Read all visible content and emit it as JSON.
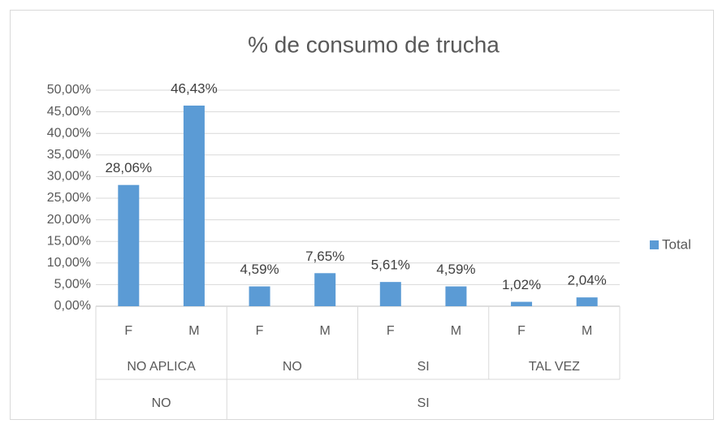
{
  "chart_data": {
    "type": "bar",
    "title": "% de consumo de trucha",
    "categories": [
      [
        "NO",
        "NO APLICA",
        "F"
      ],
      [
        "NO",
        "NO APLICA",
        "M"
      ],
      [
        "SI",
        "NO",
        "F"
      ],
      [
        "SI",
        "NO",
        "M"
      ],
      [
        "SI",
        "SI",
        "F"
      ],
      [
        "SI",
        "SI",
        "M"
      ],
      [
        "SI",
        "TAL VEZ",
        "F"
      ],
      [
        "SI",
        "TAL VEZ",
        "M"
      ]
    ],
    "series": [
      {
        "name": "Total",
        "color": "#5b9bd5",
        "values": [
          28.06,
          46.43,
          4.59,
          7.65,
          5.61,
          4.59,
          1.02,
          2.04
        ],
        "value_labels": [
          "28,06%",
          "46,43%",
          "4,59%",
          "7,65%",
          "5,61%",
          "4,59%",
          "1,02%",
          "2,04%"
        ]
      }
    ],
    "ylim": [
      0,
      50
    ],
    "yticks": [
      {
        "value": 0,
        "label": "0,00%"
      },
      {
        "value": 5,
        "label": "5,00%"
      },
      {
        "value": 10,
        "label": "10,00%"
      },
      {
        "value": 15,
        "label": "15,00%"
      },
      {
        "value": 20,
        "label": "20,00%"
      },
      {
        "value": 25,
        "label": "25,00%"
      },
      {
        "value": 30,
        "label": "30,00%"
      },
      {
        "value": 35,
        "label": "35,00%"
      },
      {
        "value": 40,
        "label": "40,00%"
      },
      {
        "value": 45,
        "label": "45,00%"
      },
      {
        "value": 50,
        "label": "50,00%"
      }
    ],
    "grid": true,
    "legend": "right"
  }
}
